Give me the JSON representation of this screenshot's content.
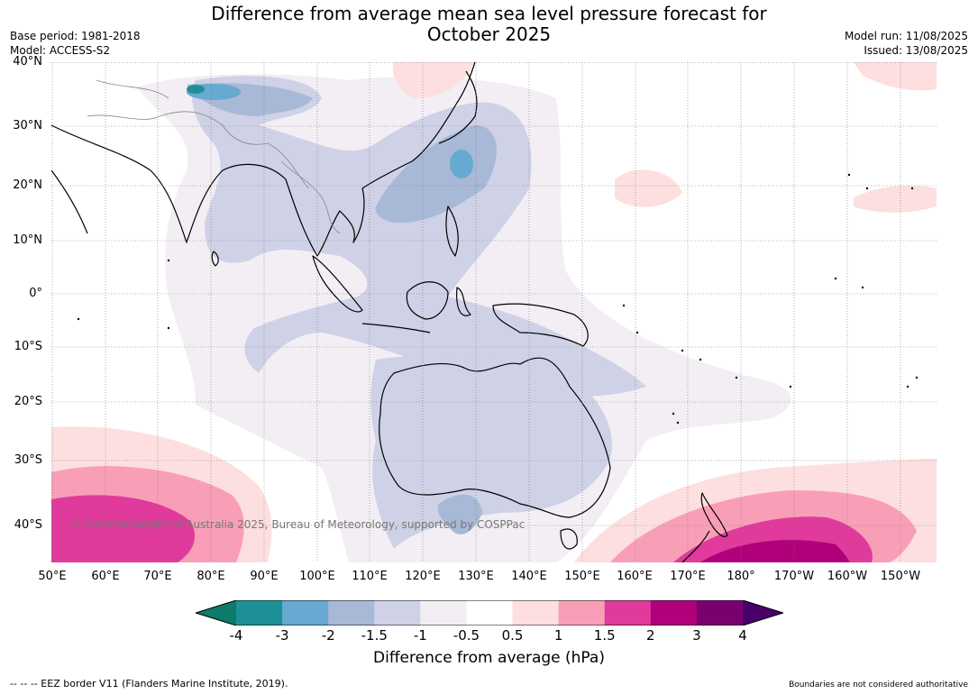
{
  "header": {
    "title_line1": "Difference from average mean sea level pressure forecast for",
    "title_line2": "October 2025",
    "base_period": "Base period: 1981-2018",
    "model": "Model: ACCESS-S2",
    "model_run": "Model run: 11/08/2025",
    "issued": "Issued: 13/08/2025"
  },
  "map": {
    "lat_labels": [
      "40°N",
      "30°N",
      "20°N",
      "10°N",
      "0°",
      "10°S",
      "20°S",
      "30°S",
      "40°S"
    ],
    "lon_labels": [
      "50°E",
      "60°E",
      "70°E",
      "80°E",
      "90°E",
      "100°E",
      "110°E",
      "120°E",
      "130°E",
      "140°E",
      "150°E",
      "160°E",
      "170°E",
      "180°",
      "170°W",
      "160°W",
      "150°W"
    ],
    "copyright": "© Commonwealth of Australia 2025, Bureau of Meteorology, supported by COSPPac"
  },
  "colorbar": {
    "ticks": [
      "-4",
      "-3",
      "-2",
      "-1.5",
      "-1",
      "-0.5",
      "0.5",
      "1",
      "1.5",
      "2",
      "3",
      "4"
    ],
    "colors": [
      "#0d7a6c",
      "#1d9097",
      "#67a9d0",
      "#a7b9d6",
      "#cfd1e6",
      "#f2eef4",
      "#ffffff",
      "#fddfdf",
      "#f89fb7",
      "#e03a9c",
      "#b0007a",
      "#7a006f",
      "#4a0069"
    ],
    "label": "Difference from average (hPa)"
  },
  "footer": {
    "eez": "--  --  -- EEZ border V11 (Flanders Marine Institute, 2019).",
    "boundaries": "Boundaries are not considered authoritative"
  }
}
